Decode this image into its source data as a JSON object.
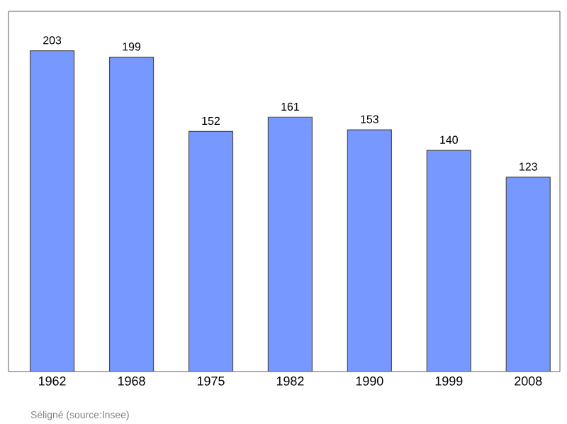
{
  "chart_data": {
    "type": "bar",
    "categories": [
      "1962",
      "1968",
      "1975",
      "1982",
      "1990",
      "1999",
      "2008"
    ],
    "values": [
      203,
      199,
      152,
      161,
      153,
      140,
      123
    ],
    "color": "#7799ff",
    "ylim": [
      0,
      228
    ],
    "data_labels": true,
    "annotations": [
      "Séligné    (source:Insee)"
    ]
  }
}
